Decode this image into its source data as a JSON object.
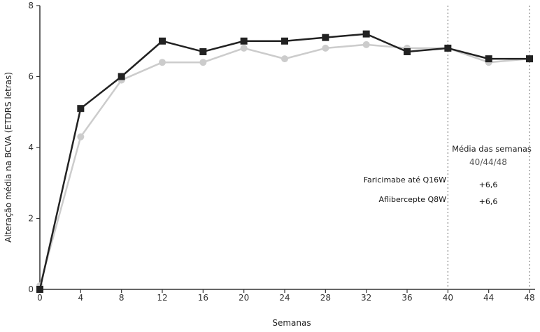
{
  "chart_data": {
    "type": "line",
    "xlabel": "Semanas",
    "ylabel": "Alteração média na BCVA (ETDRS letras)",
    "xlim": [
      0,
      48
    ],
    "ylim": [
      0,
      8
    ],
    "x_ticks": [
      0,
      4,
      8,
      12,
      16,
      20,
      24,
      28,
      32,
      36,
      40,
      44,
      48
    ],
    "y_ticks": [
      0,
      2,
      4,
      6,
      8
    ],
    "grid": false,
    "reference_lines_x": [
      40,
      48
    ],
    "x": [
      0,
      4,
      8,
      12,
      16,
      20,
      24,
      28,
      32,
      36,
      40,
      44,
      48
    ],
    "series": [
      {
        "name": "Faricimabe até Q16W",
        "marker": "square",
        "color": "#222222",
        "values": [
          0,
          5.1,
          6.0,
          7.0,
          6.7,
          7.0,
          7.0,
          7.1,
          7.2,
          6.7,
          6.8,
          6.5,
          6.5
        ]
      },
      {
        "name": "Aflibercepte Q8W",
        "marker": "circle",
        "color": "#cccccc",
        "values": [
          0.1,
          4.3,
          5.9,
          6.4,
          6.4,
          6.8,
          6.5,
          6.8,
          6.9,
          6.8,
          6.8,
          6.4,
          6.5
        ]
      }
    ],
    "annotation": {
      "heading": "Média das semanas",
      "subheading": "40/44/48",
      "rows": [
        {
          "label": "Faricimabe até Q16W",
          "value": "+6,6"
        },
        {
          "label": "Aflibercepte Q8W",
          "value": "+6,6"
        }
      ]
    }
  },
  "colors": {
    "axis": "#333333",
    "reference_line": "#999999"
  }
}
